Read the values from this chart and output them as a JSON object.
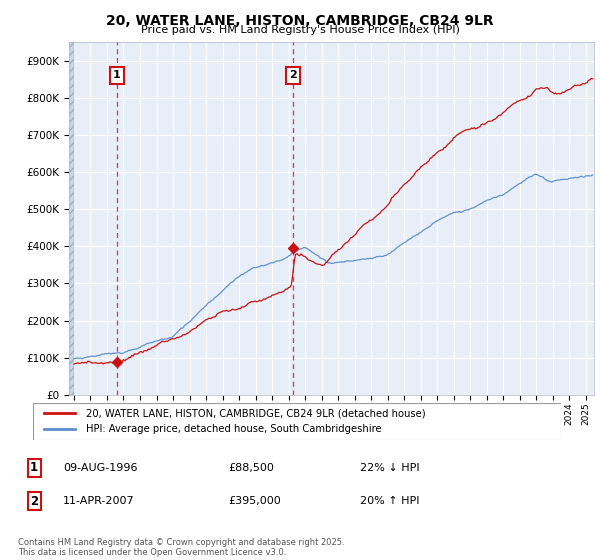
{
  "title": "20, WATER LANE, HISTON, CAMBRIDGE, CB24 9LR",
  "subtitle": "Price paid vs. HM Land Registry's House Price Index (HPI)",
  "ylim": [
    0,
    950000
  ],
  "yticks": [
    0,
    100000,
    200000,
    300000,
    400000,
    500000,
    600000,
    700000,
    800000,
    900000
  ],
  "ytick_labels": [
    "£0",
    "£100K",
    "£200K",
    "£300K",
    "£400K",
    "£500K",
    "£600K",
    "£700K",
    "£800K",
    "£900K"
  ],
  "xlim_start": 1993.7,
  "xlim_end": 2025.5,
  "background_color": "#ffffff",
  "plot_bg_color": "#e8eef8",
  "grid_color": "#ffffff",
  "hpi_line_color": "#5b8ec9",
  "price_line_color": "#cc1111",
  "transaction1_x": 1996.61,
  "transaction1_y": 88500,
  "transaction1_label": "1",
  "transaction1_date": "09-AUG-1996",
  "transaction1_price": "£88,500",
  "transaction1_note": "22% ↓ HPI",
  "transaction2_x": 2007.28,
  "transaction2_y": 395000,
  "transaction2_label": "2",
  "transaction2_date": "11-APR-2007",
  "transaction2_price": "£395,000",
  "transaction2_note": "20% ↑ HPI",
  "legend_label1": "20, WATER LANE, HISTON, CAMBRIDGE, CB24 9LR (detached house)",
  "legend_label2": "HPI: Average price, detached house, South Cambridgeshire",
  "footer": "Contains HM Land Registry data © Crown copyright and database right 2025.\nThis data is licensed under the Open Government Licence v3.0.",
  "hatch_color": "#c8d4ea"
}
